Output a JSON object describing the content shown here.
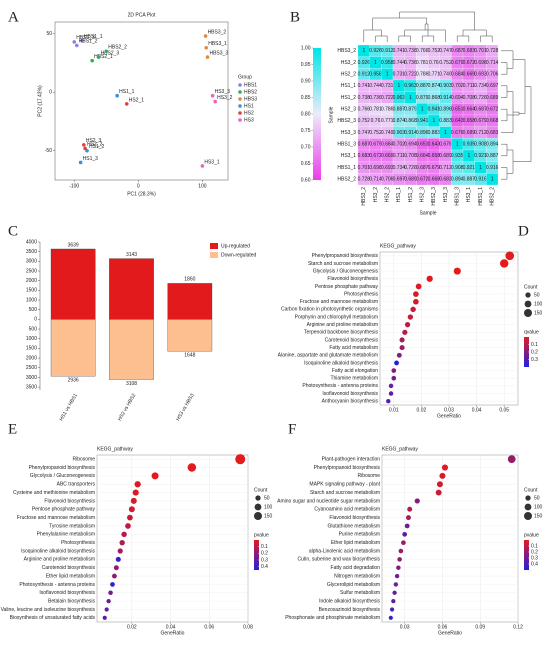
{
  "chart_data": [
    {
      "type": "scatter",
      "panel_label": "A",
      "title": "2D PCA Plot",
      "x_label": "PC1 (28.3%)",
      "y_label": "PC2 (17.43%)",
      "xlim": [
        -130,
        140
      ],
      "ylim": [
        -75,
        60
      ],
      "xticks": [
        -100,
        0,
        100
      ],
      "yticks": [
        -50,
        0,
        50
      ],
      "legend_title": "Group",
      "legend": "right",
      "series": [
        {
          "name": "HBS1",
          "color": "#8f7fe8",
          "x": [
            -100,
            -88,
            -96
          ],
          "y": [
            43,
            44,
            40
          ],
          "labels": [
            "HBS1_3",
            "HBS1_1",
            "HBS1_2"
          ]
        },
        {
          "name": "HBS2",
          "color": "#2fae5f",
          "x": [
            -72,
            -62,
            -50
          ],
          "y": [
            27,
            30,
            35
          ],
          "labels": [
            "HBS2_1",
            "HBS2_3",
            "HBS2_2"
          ]
        },
        {
          "name": "HBS3",
          "color": "#e08a3a",
          "x": [
            105,
            106,
            108
          ],
          "y": [
            48,
            38,
            30
          ],
          "labels": [
            "HBS3_2",
            "HBS3_1",
            "HBS3_3"
          ]
        },
        {
          "name": "HS1",
          "color": "#3f8fd8",
          "x": [
            -33,
            -90,
            -80
          ],
          "y": [
            -3,
            -60,
            -50
          ],
          "labels": [
            "HS1_1",
            "HS1_3",
            "HS1_2"
          ]
        },
        {
          "name": "HS2",
          "color": "#e04040",
          "x": [
            -18,
            -85,
            -83
          ],
          "y": [
            -10,
            -45,
            -48
          ],
          "labels": [
            "HS2_1",
            "HS2_3",
            "HS2_2"
          ]
        },
        {
          "name": "HS3",
          "color": "#f060c0",
          "x": [
            120,
            100,
            116
          ],
          "y": [
            -8,
            -63,
            -3
          ],
          "labels": [
            "HS3_2",
            "HS3_1",
            "HS3_3"
          ]
        }
      ]
    },
    {
      "type": "heatmap",
      "panel_label": "B",
      "x_label": "Sample",
      "y_label": "Sample",
      "labels": [
        "HBS3_2",
        "HS3_2",
        "HS2_2",
        "HS1_1",
        "HS1_2",
        "HS2_3",
        "HBS2_3",
        "HS3_3",
        "HBS1_3",
        "HS3_1",
        "HBS1_1",
        "HBS2_2"
      ],
      "values": [
        [
          1,
          0.926,
          0.912,
          0.741,
          0.738,
          0.766,
          0.752,
          0.747,
          0.687,
          0.683,
          0.701,
          0.728
        ],
        [
          0.926,
          1,
          0.958,
          0.744,
          0.736,
          0.781,
          0.76,
          0.752,
          0.679,
          0.672,
          0.698,
          0.714
        ],
        [
          0.912,
          0.958,
          1,
          0.731,
          0.722,
          0.786,
          0.771,
          0.749,
          0.684,
          0.669,
          0.693,
          0.706
        ],
        [
          0.741,
          0.744,
          0.731,
          1,
          0.963,
          0.887,
          0.874,
          0.903,
          0.702,
          0.711,
          0.734,
          0.697
        ],
        [
          0.738,
          0.736,
          0.722,
          0.963,
          1,
          0.879,
          0.868,
          0.914,
          0.694,
          0.708,
          0.726,
          0.689
        ],
        [
          0.766,
          0.781,
          0.786,
          0.887,
          0.879,
          1,
          0.941,
          0.896,
          0.651,
          0.664,
          0.687,
          0.672
        ],
        [
          0.752,
          0.76,
          0.771,
          0.874,
          0.868,
          0.941,
          1,
          0.883,
          0.643,
          0.658,
          0.679,
          0.668
        ],
        [
          0.747,
          0.752,
          0.749,
          0.903,
          0.914,
          0.896,
          0.883,
          1,
          0.676,
          0.689,
          0.712,
          0.683
        ],
        [
          0.687,
          0.679,
          0.684,
          0.702,
          0.694,
          0.651,
          0.643,
          0.676,
          1,
          0.935,
          0.908,
          0.894
        ],
        [
          0.683,
          0.672,
          0.669,
          0.711,
          0.708,
          0.664,
          0.658,
          0.689,
          0.935,
          1,
          0.921,
          0.887
        ],
        [
          0.701,
          0.698,
          0.693,
          0.734,
          0.726,
          0.687,
          0.679,
          0.712,
          0.908,
          0.921,
          1,
          0.916
        ],
        [
          0.728,
          0.714,
          0.706,
          0.697,
          0.689,
          0.672,
          0.668,
          0.683,
          0.894,
          0.887,
          0.916,
          1
        ]
      ],
      "vlim": [
        0.6,
        1
      ],
      "colors": [
        "#eb3ceb",
        "#ebebfa",
        "#00e6e6"
      ],
      "vticks": [
        {
          "value": 0.6,
          "label": "0.60"
        },
        {
          "value": 0.65,
          "label": "0.65"
        },
        {
          "value": 0.7,
          "label": "0.70"
        },
        0.75,
        {
          "value": 0.8,
          "label": "0.80"
        },
        0.85,
        {
          "value": 0.9,
          "label": "0.90"
        },
        0.95,
        {
          "value": 1,
          "label": "1.00"
        }
      ]
    },
    {
      "type": "bar",
      "panel_label": "C",
      "categories": [
        "HS1 vs HBS1",
        "HS2 vs HBS2",
        "HS3 vs HBS3"
      ],
      "ylim": [
        -3650,
        4000
      ],
      "yticks": [
        {
          "value": -3500,
          "label": "3500"
        },
        {
          "value": -3000,
          "label": "3000"
        },
        {
          "value": -2500,
          "label": "2500"
        },
        {
          "value": -2000,
          "label": "2000"
        },
        {
          "value": -1500,
          "label": "1500"
        },
        {
          "value": -1000,
          "label": "1000"
        },
        {
          "value": -500,
          "label": "500"
        },
        0,
        500,
        1000,
        1500,
        2000,
        2500,
        3000,
        3500,
        4000
      ],
      "legend": "top-right",
      "series": [
        {
          "name": "Up-regulated",
          "color": "#e31a1c",
          "values": [
            3639,
            3143,
            1860
          ]
        },
        {
          "name": "Down-regulated",
          "color": "#fdbf8f",
          "values": [
            -2936,
            -3108,
            -1648
          ],
          "value_labels": [
            "2936",
            "3108",
            "1648"
          ]
        }
      ]
    },
    {
      "type": "dot",
      "panel_label": "D",
      "title": "KEGG_pathway",
      "x_label": "GeneRatio",
      "categories": [
        "Phenylpropanoid biosynthesis",
        "Starch and sucrose metabolism",
        "Glycolysis / Gluconeogenesis",
        "Flavonoid biosynthesis",
        "Pentose phosphate pathway",
        "Photosynthesis",
        "Fructose and mannose metabolism",
        "Carbon fixation in photosynthetic organisms",
        "Porphyrin and chlorophyll metabolism",
        "Arginine and proline metabolism",
        "Terpenoid backbone biosynthesis",
        "Carotenoid biosynthesis",
        "Fatty acid metabolism",
        "Alanine, aspartate and glutamate metabolism",
        "Isoquinoline alkaloid biosynthesis",
        "Fatty acid elongation",
        "Thiamine metabolism",
        "Photosynthesis - antenna proteins",
        "Isoflavonoid biosynthesis",
        "Anthocyanin biosynthesis"
      ],
      "values": [
        0.052,
        0.05,
        0.033,
        0.023,
        0.019,
        0.018,
        0.018,
        0.017,
        0.016,
        0.015,
        0.014,
        0.013,
        0.013,
        0.012,
        0.011,
        0.01,
        0.01,
        0.009,
        0.009,
        0.008
      ],
      "counts": [
        180,
        170,
        110,
        80,
        65,
        60,
        60,
        55,
        52,
        50,
        48,
        45,
        45,
        40,
        38,
        35,
        35,
        30,
        30,
        28
      ],
      "pvalues": [
        0.0001,
        0.0002,
        0.001,
        0.005,
        0.01,
        0.02,
        0.03,
        0.05,
        0.06,
        0.08,
        0.1,
        0.12,
        0.15,
        0.18,
        0.4,
        0.2,
        0.22,
        0.25,
        0.28,
        0.3
      ],
      "xlim": [
        0.005,
        0.055
      ],
      "xticks": [
        0.01,
        0.02,
        0.03,
        0.04,
        0.05
      ],
      "size_title": "Count",
      "size_ticks": [
        50,
        100,
        150
      ],
      "color_title": "qvalue",
      "color_lim": [
        0,
        0.4
      ],
      "color_ticks": [
        0.1,
        0.2,
        0.3
      ],
      "colors": [
        "#e41a1c",
        "#2020e0"
      ],
      "grid": true
    },
    {
      "type": "dot",
      "panel_label": "E",
      "title": "KEGG_pathway",
      "x_label": "GeneRatio",
      "categories": [
        "Ribosome",
        "Phenylpropanoid biosynthesis",
        "Glycolysis / Gluconeogenesis",
        "ABC transporters",
        "Cysteine and methionine metabolism",
        "Flavonoid biosynthesis",
        "Pentose phosphate pathway",
        "Fructose and mannose metabolism",
        "Tyrosine metabolism",
        "Phenylalanine metabolism",
        "Photosynthesis",
        "Isoquinoline alkaloid biosynthesis",
        "Arginine and proline metabolism",
        "Carotenoid biosynthesis",
        "Ether lipid metabolism",
        "Photosynthesis - antenna proteins",
        "Isoflavonoid biosynthesis",
        "Betalain biosynthesis",
        "Valine, leucine and isoleucine biosynthesis",
        "Biosynthesis of unsaturated fatty acids"
      ],
      "values": [
        0.076,
        0.051,
        0.032,
        0.023,
        0.022,
        0.021,
        0.02,
        0.019,
        0.018,
        0.016,
        0.015,
        0.014,
        0.013,
        0.012,
        0.011,
        0.01,
        0.009,
        0.008,
        0.007,
        0.006
      ],
      "counts": [
        260,
        175,
        110,
        80,
        75,
        72,
        70,
        65,
        62,
        55,
        52,
        48,
        45,
        42,
        38,
        35,
        32,
        28,
        25,
        22
      ],
      "pvalues": [
        0.0001,
        0.0003,
        0.002,
        0.01,
        0.02,
        0.03,
        0.05,
        0.06,
        0.08,
        0.1,
        0.12,
        0.15,
        0.4,
        0.18,
        0.2,
        0.42,
        0.25,
        0.28,
        0.3,
        0.32
      ],
      "xlim": [
        0.002,
        0.08
      ],
      "xticks": [
        0.02,
        0.04,
        0.06,
        0.08
      ],
      "size_title": "Count",
      "size_ticks": [
        50,
        100,
        150
      ],
      "color_title": "pvalue",
      "color_lim": [
        0,
        0.45
      ],
      "color_ticks": [
        0.1,
        0.2,
        0.3,
        0.4
      ],
      "colors": [
        "#e41a1c",
        "#2020e0"
      ],
      "grid": true
    },
    {
      "type": "dot",
      "panel_label": "F",
      "title": "KEGG_pathway",
      "x_label": "GeneRatio",
      "categories": [
        "Plant-pathogen interaction",
        "Phenylpropanoid biosynthesis",
        "Ribosome",
        "MAPK signaling pathway - plant",
        "Starch and sucrose metabolism",
        "Amino sugar and nucleotide sugar metabolism",
        "Cyanoamino acid metabolism",
        "Flavonoid biosynthesis",
        "Glutathione metabolism",
        "Purine metabolism",
        "Ether lipid metabolism",
        "alpha-Linolenic acid metabolism",
        "Cutin, suberine and wax biosynthesis",
        "Fatty acid degradation",
        "Nitrogen metabolism",
        "Glycerolipid metabolism",
        "Sulfur metabolism",
        "Indole alkaloid biosynthesis",
        "Benzoxazinoid biosynthesis",
        "Phosphonate and phosphinate metabolism"
      ],
      "values": [
        0.115,
        0.062,
        0.06,
        0.058,
        0.057,
        0.04,
        0.034,
        0.033,
        0.032,
        0.03,
        0.029,
        0.027,
        0.026,
        0.025,
        0.024,
        0.023,
        0.022,
        0.021,
        0.02,
        0.019
      ],
      "counts": [
        140,
        75,
        72,
        70,
        68,
        48,
        42,
        40,
        38,
        36,
        35,
        33,
        32,
        30,
        29,
        28,
        27,
        26,
        25,
        24
      ],
      "pvalues": [
        0.2,
        0.01,
        0.03,
        0.05,
        0.06,
        0.25,
        0.12,
        0.15,
        0.3,
        0.35,
        0.18,
        0.2,
        0.22,
        0.25,
        0.28,
        0.3,
        0.33,
        0.36,
        0.4,
        0.45
      ],
      "xlim": [
        0.012,
        0.12
      ],
      "xticks": [
        0.03,
        0.06,
        0.09,
        0.12
      ],
      "size_title": "Count",
      "size_ticks": [
        50,
        100,
        150
      ],
      "color_title": "pvalue",
      "color_lim": [
        0,
        0.5
      ],
      "color_ticks": [
        0.1,
        0.2,
        0.3,
        0.4
      ],
      "colors": [
        "#e41a1c",
        "#2020e0"
      ],
      "grid": true
    }
  ]
}
